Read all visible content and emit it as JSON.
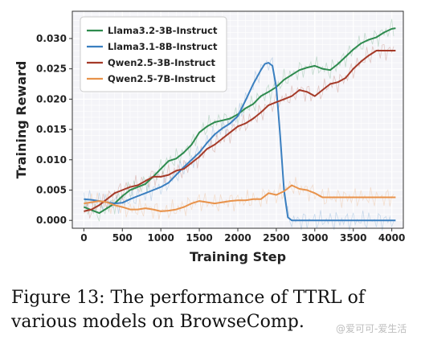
{
  "chart_data": {
    "type": "line",
    "xlabel": "Training Step",
    "ylabel": "Training Reward",
    "xlim": [
      -150,
      4150
    ],
    "ylim": [
      -0.0013,
      0.0345
    ],
    "xticks": [
      0,
      500,
      1000,
      1500,
      2000,
      2500,
      3000,
      3500,
      4000
    ],
    "xtick_labels": [
      "0",
      "500",
      "1000",
      "1500",
      "2000",
      "2500",
      "3000",
      "3500",
      "4000"
    ],
    "yticks": [
      0.0,
      0.005,
      0.01,
      0.015,
      0.02,
      0.025,
      0.03
    ],
    "ytick_labels": [
      "0.000",
      "0.005",
      "0.010",
      "0.015",
      "0.020",
      "0.025",
      "0.030"
    ],
    "grid": true,
    "legend_position": "top-left",
    "series": [
      {
        "name": "Llama3.2-3B-Instruct",
        "color": "#2e8b4e",
        "x": [
          0,
          100,
          200,
          300,
          400,
          500,
          600,
          700,
          800,
          900,
          1000,
          1100,
          1200,
          1300,
          1400,
          1500,
          1600,
          1700,
          1800,
          1900,
          2000,
          2100,
          2200,
          2300,
          2400,
          2500,
          2600,
          2700,
          2800,
          2900,
          3000,
          3100,
          3200,
          3300,
          3400,
          3500,
          3600,
          3700,
          3800,
          3900,
          4000,
          4050
        ],
        "y": [
          0.0022,
          0.0017,
          0.0012,
          0.002,
          0.0028,
          0.004,
          0.005,
          0.0055,
          0.006,
          0.0072,
          0.0085,
          0.0098,
          0.0102,
          0.0112,
          0.0125,
          0.0145,
          0.0155,
          0.0162,
          0.0165,
          0.0168,
          0.0175,
          0.0185,
          0.0192,
          0.0205,
          0.0212,
          0.022,
          0.0232,
          0.024,
          0.0248,
          0.0252,
          0.0255,
          0.025,
          0.0248,
          0.0258,
          0.027,
          0.0282,
          0.0292,
          0.0298,
          0.0302,
          0.031,
          0.0316,
          0.0317
        ]
      },
      {
        "name": "Llama3.1-8B-Instruct",
        "color": "#3a7fc0",
        "x": [
          0,
          100,
          200,
          300,
          400,
          500,
          600,
          700,
          800,
          900,
          1000,
          1100,
          1200,
          1300,
          1400,
          1500,
          1600,
          1700,
          1800,
          1900,
          2000,
          2100,
          2200,
          2300,
          2350,
          2400,
          2450,
          2500,
          2550,
          2600,
          2650,
          2700,
          2800,
          3000,
          3500,
          4000,
          4050
        ],
        "y": [
          0.0035,
          0.0034,
          0.0032,
          0.003,
          0.0028,
          0.0029,
          0.0035,
          0.004,
          0.0045,
          0.005,
          0.0055,
          0.0062,
          0.0075,
          0.0088,
          0.01,
          0.0112,
          0.0128,
          0.0142,
          0.0152,
          0.016,
          0.0172,
          0.0198,
          0.0225,
          0.0248,
          0.0258,
          0.026,
          0.0255,
          0.022,
          0.014,
          0.005,
          0.0005,
          0.0,
          0.0,
          0.0,
          0.0,
          0.0,
          0.0
        ]
      },
      {
        "name": "Qwen2.5-3B-Instruct",
        "color": "#a53a28",
        "x": [
          0,
          100,
          200,
          300,
          400,
          500,
          600,
          700,
          800,
          900,
          1000,
          1100,
          1200,
          1300,
          1400,
          1500,
          1600,
          1700,
          1800,
          1900,
          2000,
          2100,
          2200,
          2300,
          2400,
          2500,
          2600,
          2700,
          2800,
          2900,
          3000,
          3100,
          3200,
          3300,
          3400,
          3500,
          3600,
          3700,
          3800,
          3900,
          4000,
          4050
        ],
        "y": [
          0.0015,
          0.0018,
          0.0025,
          0.0035,
          0.0045,
          0.005,
          0.0055,
          0.0058,
          0.0065,
          0.0072,
          0.0072,
          0.0075,
          0.0082,
          0.0085,
          0.0095,
          0.0105,
          0.0118,
          0.0125,
          0.0135,
          0.0145,
          0.0155,
          0.016,
          0.0168,
          0.0178,
          0.019,
          0.0195,
          0.02,
          0.0205,
          0.0215,
          0.0212,
          0.0205,
          0.0215,
          0.0225,
          0.0228,
          0.0235,
          0.025,
          0.0262,
          0.0272,
          0.028,
          0.028,
          0.028,
          0.028
        ]
      },
      {
        "name": "Qwen2.5-7B-Instruct",
        "color": "#e8924a",
        "x": [
          0,
          100,
          200,
          300,
          400,
          500,
          600,
          700,
          800,
          900,
          1000,
          1100,
          1200,
          1300,
          1400,
          1500,
          1600,
          1700,
          1800,
          1900,
          2000,
          2100,
          2200,
          2300,
          2400,
          2500,
          2600,
          2700,
          2800,
          2900,
          3000,
          3100,
          3200,
          3400,
          3600,
          3800,
          4000,
          4050
        ],
        "y": [
          0.0028,
          0.003,
          0.0032,
          0.003,
          0.0025,
          0.0022,
          0.0018,
          0.0018,
          0.002,
          0.0018,
          0.0015,
          0.0016,
          0.0018,
          0.0022,
          0.0028,
          0.0032,
          0.003,
          0.0028,
          0.003,
          0.0032,
          0.0033,
          0.0033,
          0.0035,
          0.0035,
          0.0045,
          0.0042,
          0.0048,
          0.0058,
          0.0052,
          0.005,
          0.0045,
          0.0038,
          0.0038,
          0.0038,
          0.0038,
          0.0038,
          0.0038,
          0.0038
        ]
      }
    ]
  },
  "caption": "Figure 13: The performance of TTRL of various models on BrowseComp.",
  "watermark": "@爱可可-爱生活"
}
